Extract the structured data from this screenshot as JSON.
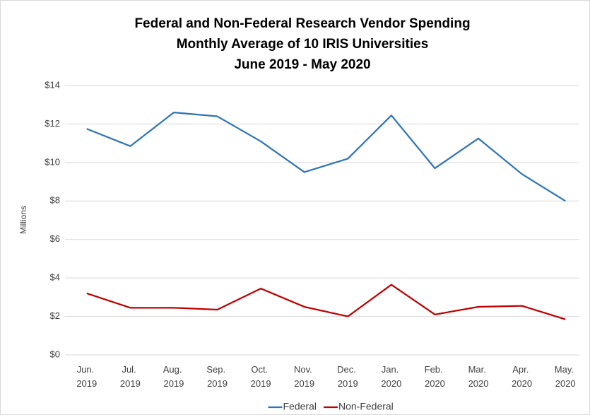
{
  "chart_data": {
    "type": "line",
    "title": [
      "Federal and Non-Federal Research Vendor Spending",
      "Monthly Average of 10 IRIS Universities",
      "June 2019 - May 2020"
    ],
    "y_label": "Millions",
    "categories": [
      "Jun. 2019",
      "Jul. 2019",
      "Aug. 2019",
      "Sep. 2019",
      "Oct. 2019",
      "Nov. 2019",
      "Dec. 2019",
      "Jan. 2020",
      "Feb. 2020",
      "Mar. 2020",
      "Apr. 2020",
      "May. 2020"
    ],
    "series": [
      {
        "name": "Federal",
        "color": "#2e75b6",
        "values": [
          11.75,
          10.85,
          12.6,
          12.4,
          11.1,
          9.5,
          10.2,
          12.45,
          9.7,
          11.25,
          9.4,
          8.0
        ]
      },
      {
        "name": "Non-Federal",
        "color": "#c00000",
        "values": [
          3.2,
          2.45,
          2.45,
          2.35,
          3.45,
          2.5,
          2.0,
          3.65,
          2.1,
          2.5,
          2.55,
          1.85
        ]
      }
    ],
    "ylim": [
      0,
      14
    ],
    "yticks": [
      {
        "value": 0,
        "label": "$0"
      },
      {
        "value": 2,
        "label": "$2"
      },
      {
        "value": 4,
        "label": "$4"
      },
      {
        "value": 6,
        "label": "$6"
      },
      {
        "value": 8,
        "label": "$8"
      },
      {
        "value": 10,
        "label": "$10"
      },
      {
        "value": 12,
        "label": "$12"
      },
      {
        "value": 14,
        "label": "$14"
      }
    ],
    "grid": true,
    "legend": "bottom"
  }
}
